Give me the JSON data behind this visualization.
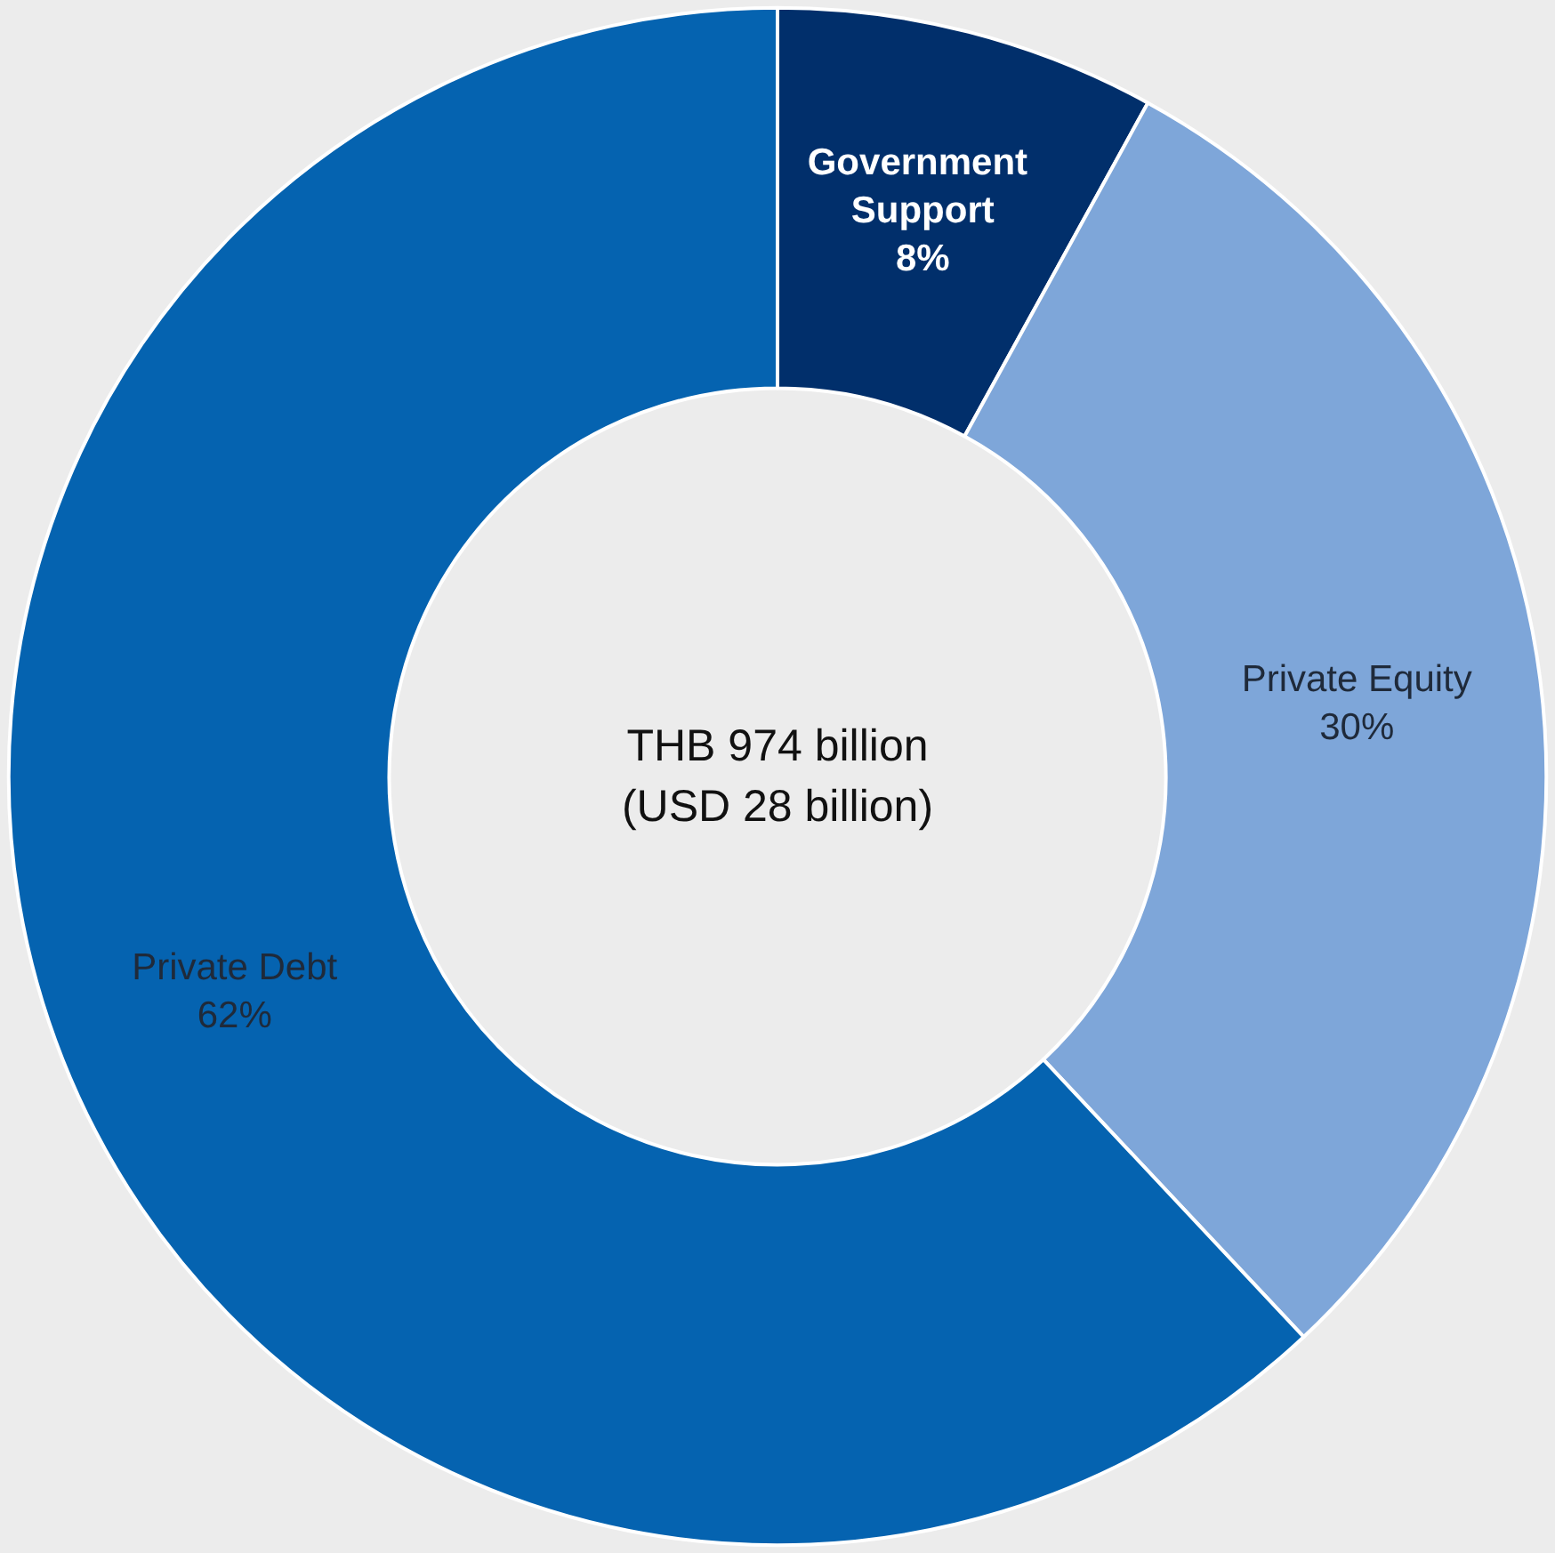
{
  "chart_data": {
    "type": "donut",
    "categories": [
      "Government Support",
      "Private Equity",
      "Private Debt"
    ],
    "values": [
      8,
      30,
      62
    ],
    "colors": [
      "#012f6b",
      "#7ea6d9",
      "#0563b0"
    ],
    "annotations": [
      "THB 974 billion",
      "(USD 28 billion)"
    ],
    "value_labels": [
      "8%",
      "30%",
      "62%"
    ],
    "legend": false
  }
}
